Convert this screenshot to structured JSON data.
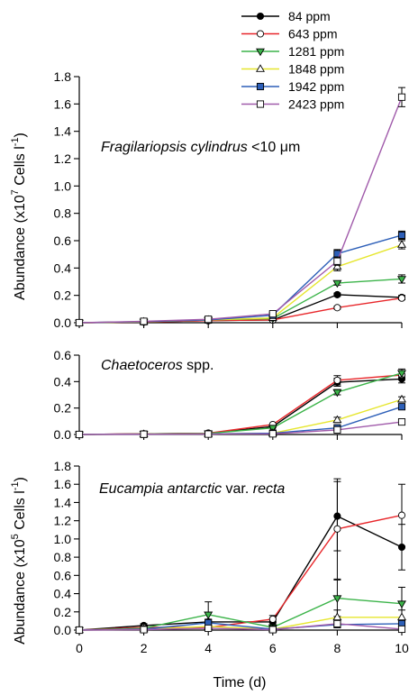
{
  "chart_data": {
    "type": "line",
    "x": [
      0,
      2,
      4,
      6,
      8,
      10
    ],
    "xticks": [
      "0",
      "2",
      "4",
      "6",
      "8",
      "10"
    ],
    "xlabel": "Time (d)",
    "xlim": [
      0,
      10
    ],
    "legend": {
      "placement": "top-right",
      "entries": [
        {
          "label": "84 ppm",
          "color": "#000000",
          "marker": "circle-filled"
        },
        {
          "label": "643 ppm",
          "color": "#e8262a",
          "marker": "circle-open"
        },
        {
          "label": "1281 ppm",
          "color": "#3cb44a",
          "marker": "triangle-down-filled"
        },
        {
          "label": "1848 ppm",
          "color": "#e6e62e",
          "marker": "triangle-up-open"
        },
        {
          "label": "1942 ppm",
          "color": "#2d5fb8",
          "marker": "square-filled"
        },
        {
          "label": "2423 ppm",
          "color": "#a05aaa",
          "marker": "square-open"
        }
      ]
    },
    "panels": [
      {
        "title_italic": "Fragilariopsis cylindrus",
        "title_rest": " <10 μm",
        "ylabel_main": "Abundance (x10",
        "ylabel_sup": "7",
        "ylabel_mid": " Cells l",
        "ylabel_sup2": "-1",
        "ylabel_end": ")",
        "ylim": [
          0,
          1.8
        ],
        "yticks": [
          "0.0",
          "0.2",
          "0.4",
          "0.6",
          "0.8",
          "1.0",
          "1.2",
          "1.4",
          "1.6",
          "1.8"
        ],
        "series": [
          {
            "values": [
              0.0,
              0.005,
              0.015,
              0.02,
              0.205,
              0.185
            ],
            "errors": [
              0,
              0,
              0,
              0,
              0.012,
              0.015
            ]
          },
          {
            "values": [
              0.0,
              0.005,
              0.015,
              0.02,
              0.11,
              0.18
            ],
            "errors": [
              0,
              0,
              0,
              0,
              0.01,
              0.012
            ]
          },
          {
            "values": [
              0.0,
              0.007,
              0.02,
              0.03,
              0.29,
              0.32
            ],
            "errors": [
              0,
              0,
              0,
              0,
              0.015,
              0.03
            ]
          },
          {
            "values": [
              0.0,
              0.007,
              0.02,
              0.035,
              0.41,
              0.57
            ],
            "errors": [
              0,
              0,
              0,
              0,
              0.03,
              0.03
            ]
          },
          {
            "values": [
              0.0,
              0.008,
              0.02,
              0.055,
              0.505,
              0.64
            ],
            "errors": [
              0,
              0,
              0,
              0,
              0.03,
              0.03
            ]
          },
          {
            "values": [
              0.0,
              0.01,
              0.025,
              0.065,
              0.45,
              1.65
            ],
            "errors": [
              0,
              0,
              0,
              0,
              0.03,
              0.07
            ]
          }
        ]
      },
      {
        "title_italic": "Chaetoceros",
        "title_rest": " spp.",
        "ylim": [
          0,
          0.6
        ],
        "yticks": [
          "0.0",
          "0.2",
          "0.4",
          "0.6"
        ],
        "series": [
          {
            "values": [
              0.0,
              0.005,
              0.01,
              0.06,
              0.395,
              0.42
            ],
            "errors": [
              0,
              0,
              0,
              0,
              0.03,
              0.03
            ]
          },
          {
            "values": [
              0.0,
              0.005,
              0.01,
              0.075,
              0.41,
              0.45
            ],
            "errors": [
              0,
              0,
              0,
              0,
              0.035,
              0.03
            ]
          },
          {
            "values": [
              0.0,
              0.004,
              0.008,
              0.05,
              0.32,
              0.465
            ],
            "errors": [
              0,
              0,
              0,
              0,
              0.02,
              0.03
            ]
          },
          {
            "values": [
              0.0,
              0.002,
              0.004,
              0.01,
              0.11,
              0.265
            ],
            "errors": [
              0,
              0,
              0,
              0,
              0.02,
              0.02
            ]
          },
          {
            "values": [
              0.0,
              0.002,
              0.004,
              0.01,
              0.05,
              0.21
            ],
            "errors": [
              0,
              0,
              0,
              0,
              0.005,
              0.01
            ]
          },
          {
            "values": [
              0.0,
              0.002,
              0.003,
              0.005,
              0.035,
              0.095
            ],
            "errors": [
              0,
              0,
              0,
              0,
              0.005,
              0.01
            ]
          }
        ]
      },
      {
        "title_italic": "Eucampia antarctic",
        "title_rest": " var. ",
        "title_italic2": "recta",
        "ylabel_main": "Abundance (x10",
        "ylabel_sup": "5",
        "ylabel_mid": " Cells l",
        "ylabel_sup2": "-1",
        "ylabel_end": ")",
        "ylim": [
          0,
          1.8
        ],
        "yticks": [
          "0.0",
          "0.2",
          "0.4",
          "0.6",
          "0.8",
          "1.0",
          "1.2",
          "1.4",
          "1.6",
          "1.8"
        ],
        "series": [
          {
            "values": [
              0.0,
              0.05,
              0.09,
              0.09,
              1.25,
              0.91
            ],
            "errors": [
              0,
              0.02,
              0.03,
              0.03,
              0.38,
              0.25
            ]
          },
          {
            "values": [
              0.0,
              0.03,
              0.03,
              0.12,
              1.11,
              1.26
            ],
            "errors": [
              0,
              0.02,
              0.02,
              0.04,
              0.55,
              0.34
            ]
          },
          {
            "values": [
              0.0,
              0.02,
              0.17,
              0.03,
              0.35,
              0.29
            ],
            "errors": [
              0,
              0.01,
              0.14,
              0.02,
              0.2,
              0.18
            ]
          },
          {
            "values": [
              0.0,
              0.01,
              0.04,
              0.01,
              0.14,
              0.14
            ],
            "errors": [
              0,
              0.01,
              0.02,
              0.01,
              0.08,
              0.08
            ]
          },
          {
            "values": [
              0.0,
              0.01,
              0.08,
              0.01,
              0.06,
              0.07
            ],
            "errors": [
              0,
              0.01,
              0.03,
              0.01,
              0.03,
              0.03
            ]
          },
          {
            "values": [
              0.0,
              0.005,
              0.02,
              0.005,
              0.07,
              0.01
            ],
            "errors": [
              0,
              0.005,
              0.01,
              0.005,
              0.03,
              0.01
            ]
          }
        ]
      }
    ]
  }
}
